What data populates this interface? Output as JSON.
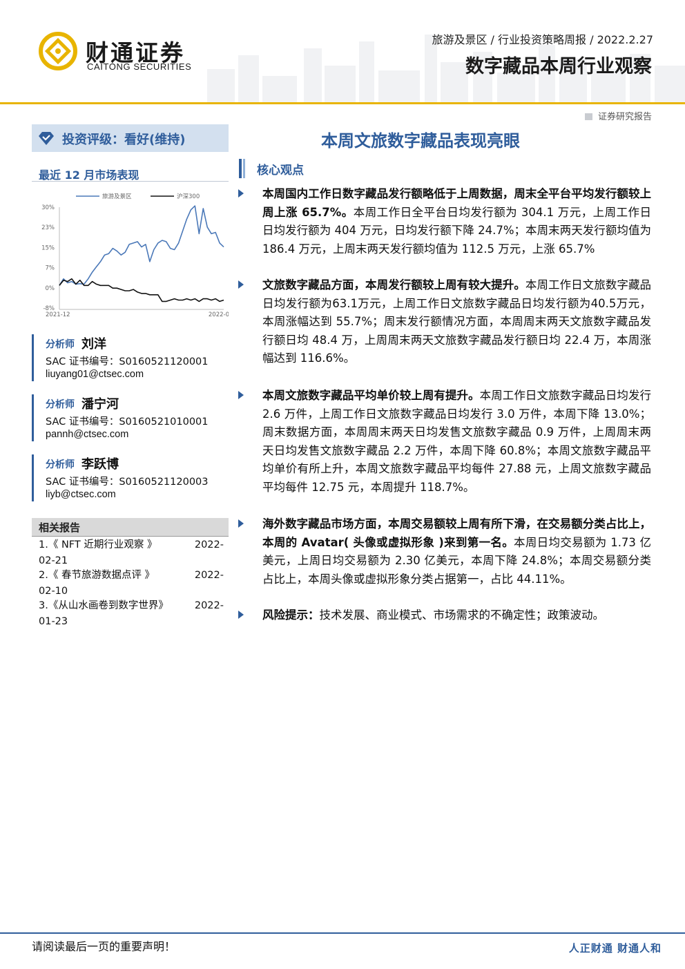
{
  "header": {
    "logo_cn": "财通证券",
    "logo_en": "CAITONG SECURITIES",
    "meta": "旅游及景区 / 行业投资策略周报 / 2022.2.27",
    "title": "数字藏品本周行业观察",
    "doc_type": "证券研究报告"
  },
  "colors": {
    "brand_blue": "#2f5d9b",
    "gold": "#e8b400",
    "series_blue": "#4a78b8",
    "series_black": "#111111"
  },
  "rating": {
    "text": "投资评级：看好(维持)",
    "icon": "diamond-check-icon"
  },
  "market": {
    "title": "最近 12 月市场表现"
  },
  "chart_data": {
    "type": "line",
    "series": [
      {
        "name": "旅游及景区",
        "values": [
          0.5,
          3,
          1.5,
          2,
          1,
          1.2,
          1,
          3,
          5.5,
          7.5,
          9.5,
          12,
          12.5,
          14.5,
          13.5,
          12,
          13,
          16,
          16.5,
          17,
          15,
          16,
          9.5,
          14,
          16.5,
          17.5,
          17,
          14.5,
          14,
          16.5,
          21,
          25.5,
          29,
          30.5,
          20,
          29.5,
          22.5,
          20,
          20.5,
          16.5,
          15
        ]
      },
      {
        "name": "沪深300",
        "values": [
          0.5,
          2.5,
          2,
          3,
          1,
          2.5,
          0.5,
          0.5,
          2,
          1,
          0.5,
          0.5,
          0.5,
          -0.5,
          -0.5,
          -1,
          -1.5,
          -1.5,
          -1,
          -2,
          -2.5,
          -2.5,
          -3,
          -3,
          -3,
          -5.5,
          -5.5,
          -5,
          -4.5,
          -5,
          -5,
          -4.5,
          -5,
          -4.5,
          -5.5,
          -4.5,
          -4.5,
          -5,
          -4.5,
          -5.5,
          -5
        ]
      }
    ],
    "y_ticks": [
      "30%",
      "23%",
      "15%",
      "7%",
      "0%",
      "-8%"
    ],
    "ylim": [
      -8,
      30
    ],
    "x_ticks": [
      "2021-12",
      "2022-0"
    ],
    "legend_position": "top"
  },
  "analysts": [
    {
      "role": "分析师",
      "name": "刘洋",
      "sac": "SAC 证书编号：S0160521120001",
      "email": "liuyang01@ctsec.com"
    },
    {
      "role": "分析师",
      "name": "潘宁河",
      "sac": "SAC 证书编号：S0160521010001",
      "email": "pannh@ctsec.com"
    },
    {
      "role": "分析师",
      "name": "李跃博",
      "sac": "SAC 证书编号：S0160521120003",
      "email": "liyb@ctsec.com"
    }
  ],
  "related": {
    "title": "相关报告",
    "items": [
      {
        "text": "1.《 NFT 近期行业观察 》",
        "date": "2022-",
        "date2": "02-21"
      },
      {
        "text": "2.《 春节旅游数据点评 》",
        "date": "2022-",
        "date2": "02-10"
      },
      {
        "text": "3.《从山水画卷到数字世界》",
        "date": "2022-",
        "date2": "01-23"
      }
    ]
  },
  "main": {
    "title": "本周文旅数字藏品表现亮眼",
    "core_title": "核心观点",
    "points": [
      {
        "bold": "本周国内工作日数字藏品发行额略低于上周数据，周末全平台平均发行额较上周上涨 65.7%。",
        "text": "本周工作日全平台日均发行额为 304.1 万元，上周工作日日均发行额为 404 万元，日均发行额下降 24.7%；本周末两天发行额均值为 186.4 万元，上周末两天发行额均值为 112.5 万元，上涨 65.7%"
      },
      {
        "bold": "文旅数字藏品方面，本周发行额较上周有较大提升。",
        "text": "本周工作日文旅数字藏品日均发行额为63.1万元，上周工作日文旅数字藏品日均发行额为40.5万元，本周涨幅达到 55.7%；周末发行额情况方面，本周周末两天文旅数字藏品发行额日均 48.4 万，上周周末两天文旅数字藏品发行额日均 22.4 万，本周涨幅达到 116.6%。"
      },
      {
        "bold": "本周文旅数字藏品平均单价较上周有提升。",
        "text": "本周工作日文旅数字藏品日均发行 2.6 万件，上周工作日文旅数字藏品日均发行 3.0 万件，本周下降 13.0%；周末数据方面，本周周末两天日均发售文旅数字藏品 0.9 万件，上周周末两天日均发售文旅数字藏品 2.2 万件，本周下降 60.8%；本周文旅数字藏品平均单价有所上升，本周文旅数字藏品平均每件 27.88 元，上周文旅数字藏品平均每件 12.75 元，本周提升 118.7%。"
      },
      {
        "bold": "海外数字藏品市场方面，本周交易额较上周有所下滑，在交易额分类占比上，本周的 Avatar( 头像或虚拟形象 )来到第一名。",
        "text": "本周日均交易额为 1.73 亿美元，上周日均交易额为 2.30 亿美元，本周下降 24.8%；本周交易额分类占比上，本周头像或虚拟形象分类占据第一，占比 44.11%。"
      },
      {
        "bold": "风险提示：",
        "text": "技术发展、商业模式、市场需求的不确定性；政策波动。"
      }
    ]
  },
  "footer": {
    "left": "请阅读最后一页的重要声明！",
    "right": "人正财通  财通人和"
  }
}
